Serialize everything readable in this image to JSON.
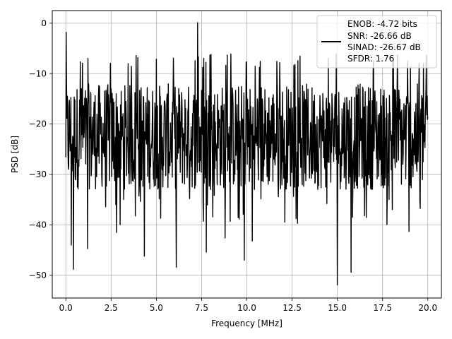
{
  "chart_data": {
    "type": "line",
    "title": "",
    "xlabel": "Frequency [MHz]",
    "ylabel": "PSD [dB]",
    "xlim": [
      -0.75,
      20.75
    ],
    "ylim": [
      -54.5,
      2.5
    ],
    "xticks": [
      0.0,
      2.5,
      5.0,
      7.5,
      10.0,
      12.5,
      15.0,
      17.5,
      20.0
    ],
    "xtick_labels": [
      "0.0",
      "2.5",
      "5.0",
      "7.5",
      "10.0",
      "12.5",
      "15.0",
      "17.5",
      "20.0"
    ],
    "yticks": [
      0,
      -10,
      -20,
      -30,
      -40,
      -50
    ],
    "ytick_labels": [
      "0",
      "−10",
      "−20",
      "−30",
      "−40",
      "−50"
    ],
    "grid": true,
    "legend": {
      "placement": "top-right",
      "lines": [
        "ENOB: -4.72 bits",
        "SNR: -26.66 dB",
        "SINAD: -26.67 dB",
        "SFDR: 1.76"
      ]
    },
    "series": [
      {
        "color": "#000000",
        "x_range": [
          0.0,
          20.0
        ],
        "noise_band": {
          "typical_low": -33,
          "typical_high": -12,
          "upper_envelope": -6
        },
        "peaks": [
          {
            "x": 0.02,
            "y": -1.8
          },
          {
            "x": 7.28,
            "y": 0.1
          }
        ],
        "dips": [
          {
            "x": 0.3,
            "y": -44
          },
          {
            "x": 0.42,
            "y": -48.8
          },
          {
            "x": 1.2,
            "y": -44.7
          },
          {
            "x": 2.8,
            "y": -41.5
          },
          {
            "x": 4.35,
            "y": -46.2
          },
          {
            "x": 6.1,
            "y": -48.4
          },
          {
            "x": 7.75,
            "y": -45.4
          },
          {
            "x": 8.8,
            "y": -42.6
          },
          {
            "x": 9.85,
            "y": -47
          },
          {
            "x": 10.3,
            "y": -43.2
          },
          {
            "x": 15.0,
            "y": -51.9
          },
          {
            "x": 15.75,
            "y": -49.4
          },
          {
            "x": 18.95,
            "y": -41.3
          }
        ]
      }
    ]
  }
}
